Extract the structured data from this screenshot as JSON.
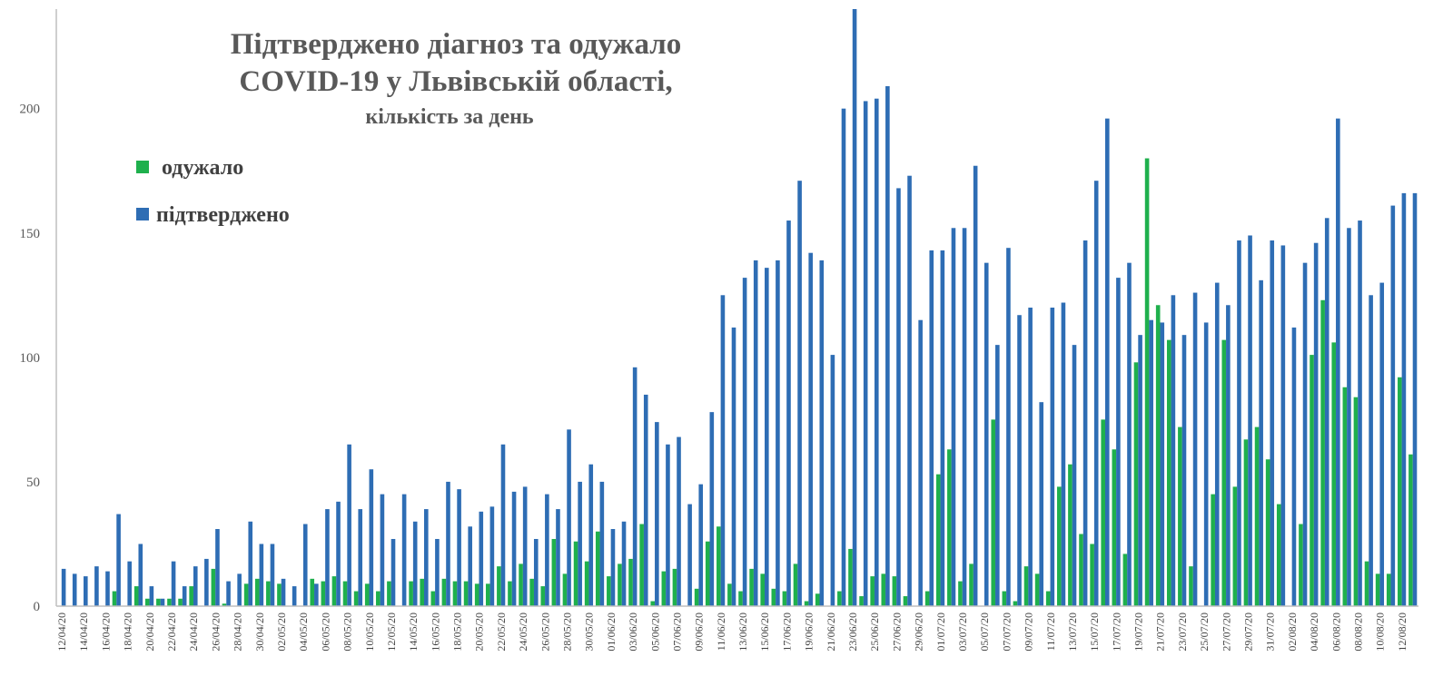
{
  "chart_data": {
    "type": "bar",
    "title": "Підтверджено діагноз та одужало",
    "title_line2": "COVID-19 у Львівській області,",
    "subtitle": "кількість за день",
    "xlabel": "",
    "ylabel": "",
    "ylim": [
      0,
      240
    ],
    "yticks": [
      0,
      50,
      100,
      150,
      200
    ],
    "grid": false,
    "legend_position": "top-left",
    "categories": [
      "12/04/20",
      "13/04/20",
      "14/04/20",
      "15/04/20",
      "16/04/20",
      "17/04/20",
      "18/04/20",
      "19/04/20",
      "20/04/20",
      "21/04/20",
      "22/04/20",
      "23/04/20",
      "24/04/20",
      "25/04/20",
      "26/04/20",
      "27/04/20",
      "28/04/20",
      "29/04/20",
      "30/04/20",
      "01/05/20",
      "02/05/20",
      "03/05/20",
      "04/05/20",
      "05/05/20",
      "06/05/20",
      "07/05/20",
      "08/05/20",
      "09/05/20",
      "10/05/20",
      "11/05/20",
      "12/05/20",
      "13/05/20",
      "14/05/20",
      "15/05/20",
      "16/05/20",
      "17/05/20",
      "18/05/20",
      "19/05/20",
      "20/05/20",
      "21/05/20",
      "22/05/20",
      "23/05/20",
      "24/05/20",
      "25/05/20",
      "26/05/20",
      "27/05/20",
      "28/05/20",
      "29/05/20",
      "30/05/20",
      "31/05/20",
      "01/06/20",
      "02/06/20",
      "03/06/20",
      "04/06/20",
      "05/06/20",
      "06/06/20",
      "07/06/20",
      "08/06/20",
      "09/06/20",
      "10/06/20",
      "11/06/20",
      "12/06/20",
      "13/06/20",
      "14/06/20",
      "15/06/20",
      "16/06/20",
      "17/06/20",
      "18/06/20",
      "19/06/20",
      "20/06/20",
      "21/06/20",
      "22/06/20",
      "23/06/20",
      "24/06/20",
      "25/06/20",
      "26/06/20",
      "27/06/20",
      "28/06/20",
      "29/06/20",
      "30/06/20",
      "01/07/20",
      "02/07/20",
      "03/07/20",
      "04/07/20",
      "05/07/20",
      "06/07/20",
      "07/07/20",
      "08/07/20",
      "09/07/20",
      "10/07/20",
      "11/07/20",
      "12/07/20",
      "13/07/20",
      "14/07/20",
      "15/07/20",
      "16/07/20",
      "17/07/20",
      "18/07/20",
      "19/07/20",
      "20/07/20",
      "21/07/20",
      "22/07/20",
      "23/07/20",
      "24/07/20",
      "25/07/20",
      "26/07/20",
      "27/07/20",
      "28/07/20",
      "29/07/20",
      "30/07/20",
      "31/07/20",
      "01/08/20",
      "02/08/20",
      "03/08/20",
      "04/08/20",
      "05/08/20",
      "06/08/20",
      "07/08/20",
      "08/08/20",
      "09/08/20",
      "10/08/20",
      "11/08/20",
      "12/08/20",
      "13/08/20"
    ],
    "tick_labels_shown": [
      "12/04/20",
      "14/04/20",
      "16/04/20",
      "18/04/20",
      "20/04/20",
      "22/04/20",
      "24/04/20",
      "26/04/20",
      "28/04/20",
      "30/04/20",
      "02/05/20",
      "04/05/20",
      "06/05/20",
      "08/05/20",
      "10/05/20",
      "12/05/20",
      "14/05/20",
      "16/05/20",
      "18/05/20",
      "20/05/20",
      "22/05/20",
      "24/05/20",
      "26/05/20",
      "28/05/20",
      "30/05/20",
      "01/06/20",
      "03/06/20",
      "05/06/20",
      "07/06/20",
      "09/06/20",
      "11/06/20",
      "13/06/20",
      "15/06/20",
      "17/06/20",
      "19/06/20",
      "21/06/20",
      "23/06/20",
      "25/06/20",
      "27/06/20",
      "29/06/20",
      "01/07/20",
      "03/07/20",
      "05/07/20",
      "07/07/20",
      "09/07/20",
      "11/07/20",
      "13/07/20",
      "15/07/20",
      "17/07/20",
      "19/07/20",
      "21/07/20",
      "23/07/20",
      "25/07/20",
      "27/07/20",
      "29/07/20",
      "31/07/20",
      "02/08/20",
      "04/08/20",
      "06/08/20",
      "08/08/20",
      "10/08/20",
      "12/08/20"
    ],
    "series": [
      {
        "name": "одужало",
        "color": "#1fb04d",
        "values": [
          0,
          0,
          0,
          0,
          0,
          6,
          0,
          8,
          3,
          3,
          3,
          3,
          8,
          0,
          15,
          1,
          0,
          9,
          11,
          10,
          9,
          0,
          0,
          11,
          10,
          12,
          10,
          6,
          9,
          6,
          10,
          0,
          10,
          11,
          6,
          11,
          10,
          10,
          9,
          9,
          16,
          10,
          17,
          11,
          8,
          27,
          13,
          26,
          18,
          30,
          12,
          17,
          19,
          33,
          2,
          14,
          15,
          0,
          7,
          26,
          32,
          9,
          6,
          15,
          13,
          7,
          6,
          17,
          2,
          5,
          0,
          6,
          23,
          4,
          12,
          13,
          12,
          4,
          0,
          6,
          53,
          63,
          10,
          17,
          0,
          75,
          6,
          2,
          16,
          13,
          6,
          48,
          57,
          29,
          25,
          75,
          63,
          21,
          98,
          180,
          121,
          107,
          72,
          16,
          0,
          45,
          107,
          48,
          67,
          72,
          59,
          41,
          0,
          33,
          101,
          123,
          106,
          88,
          84,
          18,
          13,
          13,
          92,
          61
        ]
      },
      {
        "name": "підтверджено",
        "color": "#2e6db4",
        "values": [
          15,
          13,
          12,
          16,
          14,
          37,
          18,
          25,
          8,
          3,
          18,
          8,
          16,
          19,
          31,
          10,
          13,
          34,
          25,
          25,
          11,
          8,
          33,
          9,
          39,
          42,
          65,
          39,
          55,
          45,
          27,
          45,
          34,
          39,
          27,
          50,
          47,
          32,
          38,
          40,
          65,
          46,
          48,
          27,
          45,
          39,
          71,
          50,
          57,
          50,
          31,
          34,
          96,
          85,
          74,
          65,
          68,
          41,
          49,
          78,
          125,
          112,
          132,
          139,
          136,
          139,
          155,
          171,
          142,
          139,
          101,
          200,
          240,
          203,
          204,
          209,
          168,
          173,
          115,
          143,
          143,
          152,
          152,
          177,
          138,
          105,
          144,
          117,
          120,
          82,
          120,
          122,
          105,
          147,
          171,
          196,
          132,
          138,
          109,
          115,
          114,
          125,
          109,
          126,
          114,
          130,
          121,
          147,
          149,
          131,
          147,
          145,
          112,
          138,
          146,
          156,
          196,
          152,
          155,
          125,
          130,
          161,
          166,
          166
        ]
      }
    ]
  }
}
